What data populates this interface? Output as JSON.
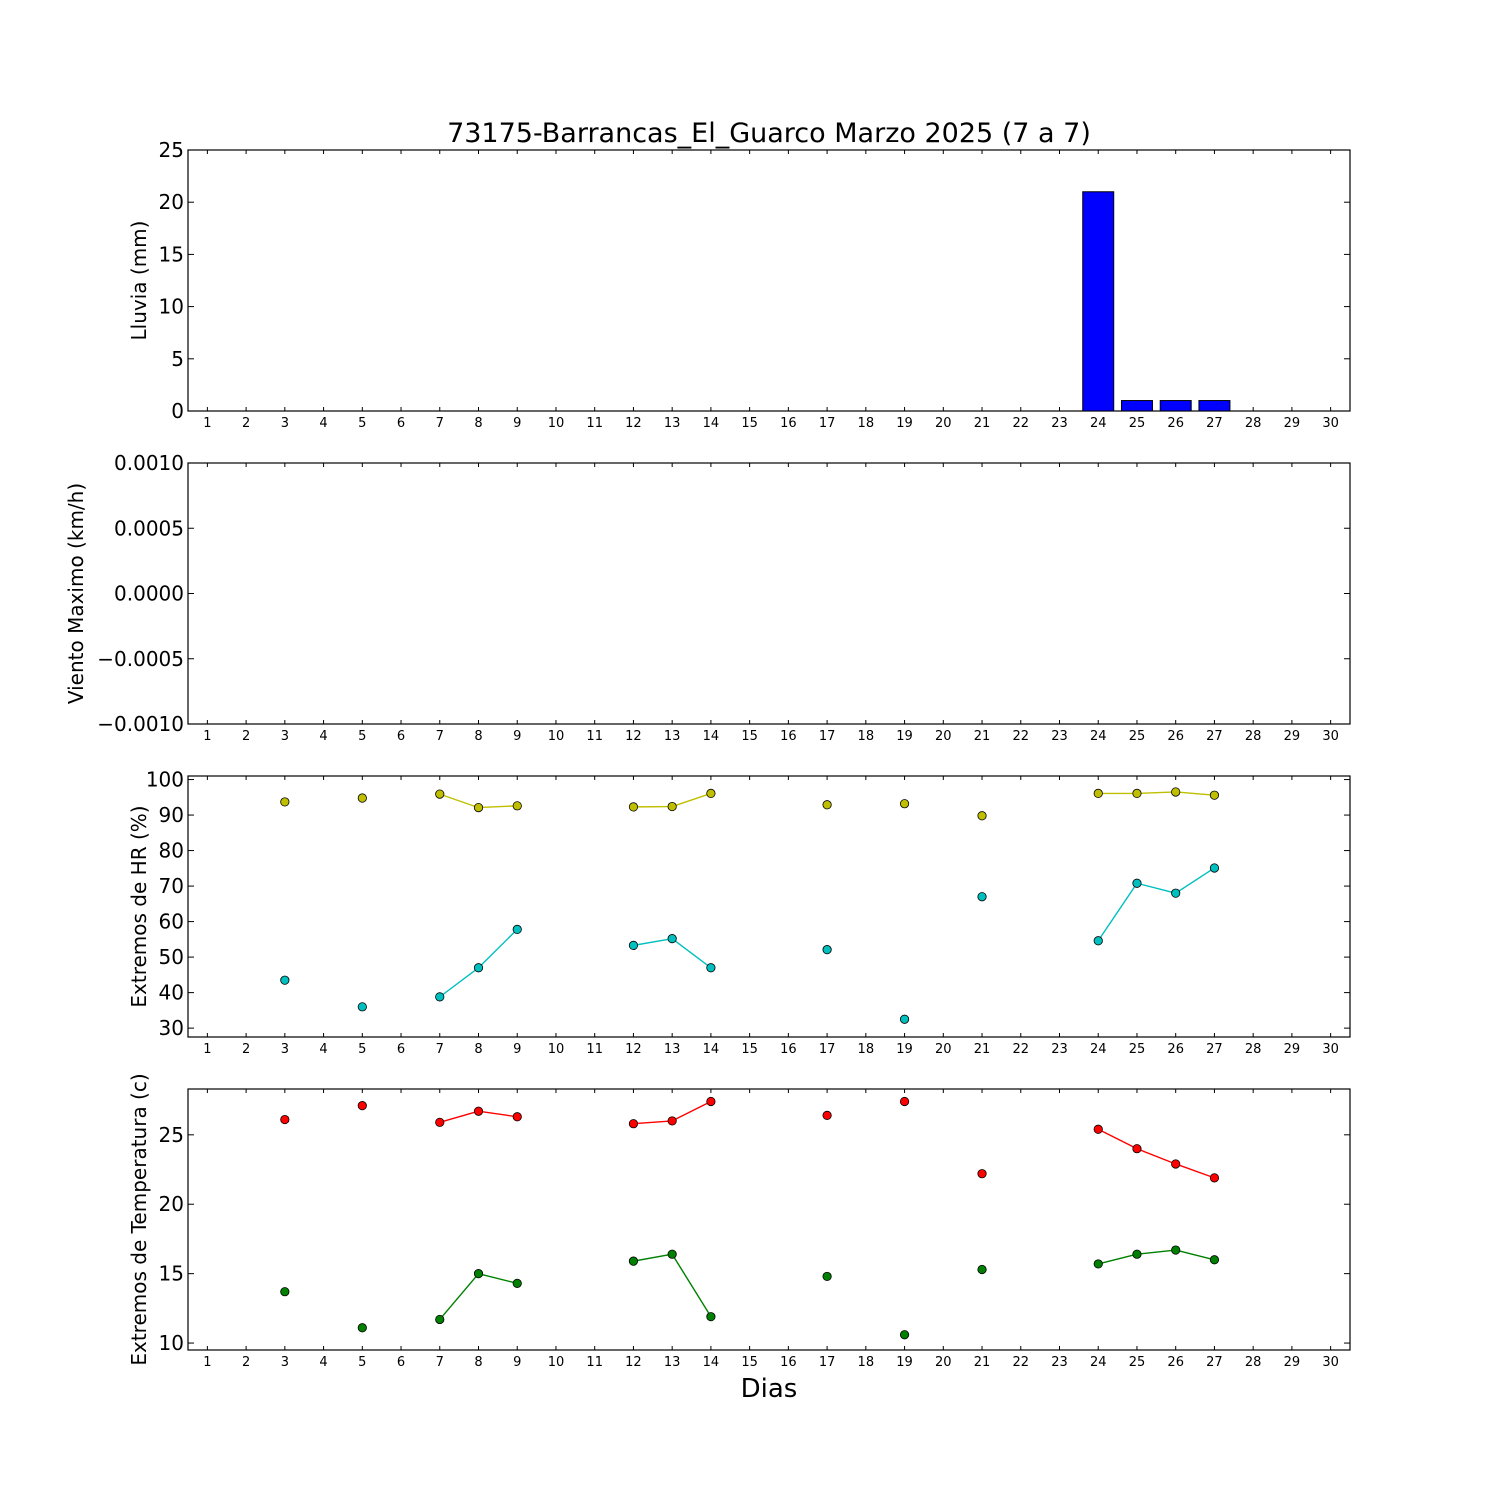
{
  "title": "73175-Barrancas_El_Guarco Marzo 2025  (7 a 7)",
  "xlabel": "Dias",
  "xticks": [
    "1",
    "2",
    "3",
    "4",
    "5",
    "6",
    "7",
    "8",
    "9",
    "10",
    "11",
    "12",
    "13",
    "14",
    "15",
    "16",
    "17",
    "18",
    "19",
    "20",
    "21",
    "22",
    "23",
    "24",
    "25",
    "26",
    "27",
    "28",
    "29",
    "30"
  ],
  "chart_data": [
    {
      "type": "bar",
      "ylabel": "Lluvia (mm)",
      "ylim": [
        0,
        25
      ],
      "yticks": [
        "0",
        "5",
        "10",
        "15",
        "20",
        "25"
      ],
      "xlim": [
        0.5,
        30.5
      ],
      "color": "#0000ff",
      "x": [
        3,
        5,
        7,
        8,
        9,
        12,
        13,
        14,
        17,
        19,
        21,
        24,
        25,
        26,
        27
      ],
      "values": [
        0,
        0,
        0,
        0,
        0,
        0,
        0,
        0,
        0,
        0,
        0,
        21,
        1,
        1,
        1
      ]
    },
    {
      "type": "line",
      "ylabel": "Viento Maximo (km/h)",
      "ylim": [
        -0.001,
        0.001
      ],
      "yticks": [
        "−0.0010",
        "−0.0005",
        "0.0000",
        "0.0005",
        "0.0010"
      ],
      "xlim": [
        0.5,
        30.5
      ],
      "series": []
    },
    {
      "type": "line",
      "ylabel": "Extremos de HR (%)",
      "ylim": [
        27.5,
        101
      ],
      "yticks": [
        "30",
        "40",
        "50",
        "60",
        "70",
        "80",
        "90",
        "100"
      ],
      "xlim": [
        0.5,
        30.5
      ],
      "series": [
        {
          "color": "#bfbf00",
          "points": [
            [
              3,
              93.7
            ],
            [
              5,
              94.8
            ],
            [
              7,
              95.9
            ],
            [
              8,
              92.1
            ],
            [
              9,
              92.6
            ],
            [
              12,
              92.3
            ],
            [
              13,
              92.4
            ],
            [
              14,
              96.1
            ],
            [
              17,
              92.9
            ],
            [
              19,
              93.2
            ],
            [
              21,
              89.8
            ],
            [
              24,
              96.1
            ],
            [
              25,
              96.1
            ],
            [
              26,
              96.5
            ],
            [
              27,
              95.6
            ]
          ]
        },
        {
          "color": "#00bfbf",
          "points": [
            [
              3,
              43.5
            ],
            [
              5,
              36
            ],
            [
              7,
              38.8
            ],
            [
              8,
              47
            ],
            [
              9,
              57.8
            ],
            [
              12,
              53.3
            ],
            [
              13,
              55.2
            ],
            [
              14,
              47
            ],
            [
              17,
              52.1
            ],
            [
              19,
              32.5
            ],
            [
              21,
              67
            ],
            [
              24,
              54.6
            ],
            [
              25,
              70.8
            ],
            [
              26,
              68
            ],
            [
              27,
              75.1
            ]
          ]
        }
      ]
    },
    {
      "type": "line",
      "ylabel": "Extremos de Temperatura (c)",
      "ylim": [
        9.5,
        28.3
      ],
      "yticks": [
        "10",
        "15",
        "20",
        "25"
      ],
      "xlim": [
        0.5,
        30.5
      ],
      "series": [
        {
          "color": "#ff0000",
          "points": [
            [
              3,
              26.1
            ],
            [
              5,
              27.1
            ],
            [
              7,
              25.9
            ],
            [
              8,
              26.7
            ],
            [
              9,
              26.3
            ],
            [
              12,
              25.8
            ],
            [
              13,
              26
            ],
            [
              14,
              27.4
            ],
            [
              17,
              26.4
            ],
            [
              19,
              27.4
            ],
            [
              21,
              22.2
            ],
            [
              24,
              25.4
            ],
            [
              25,
              24
            ],
            [
              26,
              22.9
            ],
            [
              27,
              21.9
            ]
          ]
        },
        {
          "color": "#008000",
          "points": [
            [
              3,
              13.7
            ],
            [
              5,
              11.1
            ],
            [
              7,
              11.7
            ],
            [
              8,
              15
            ],
            [
              9,
              14.3
            ],
            [
              12,
              15.9
            ],
            [
              13,
              16.4
            ],
            [
              14,
              11.9
            ],
            [
              17,
              14.8
            ],
            [
              19,
              10.6
            ],
            [
              21,
              15.3
            ],
            [
              24,
              15.7
            ],
            [
              25,
              16.4
            ],
            [
              26,
              16.7
            ],
            [
              27,
              16
            ]
          ]
        }
      ]
    }
  ]
}
